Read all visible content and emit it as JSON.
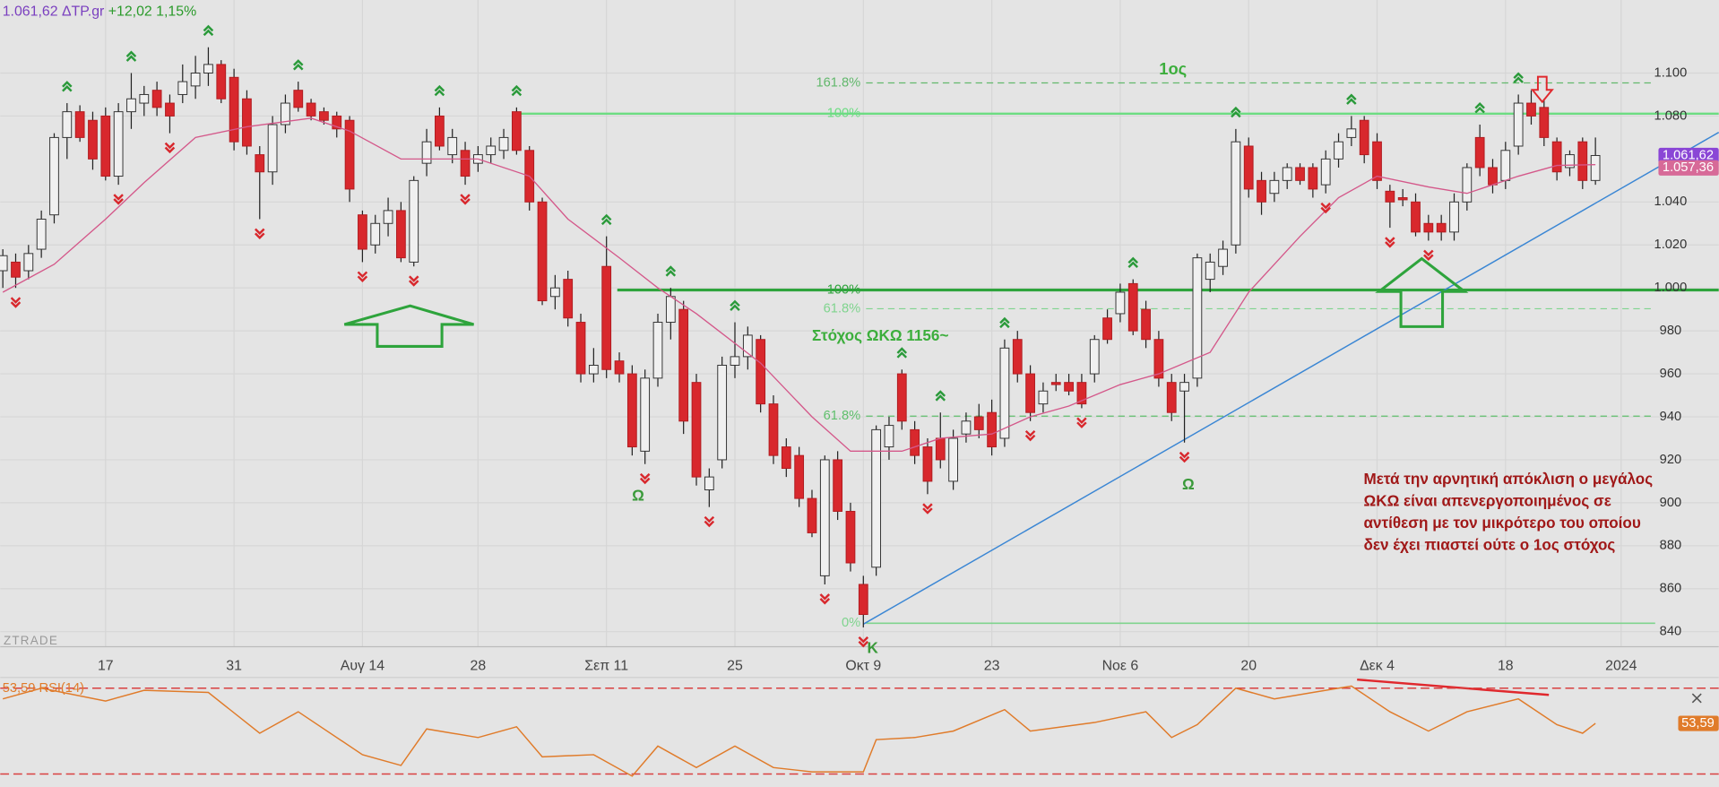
{
  "header": {
    "price": "1.061,62",
    "symbol": "ΔTP.gr",
    "change": "+12,02",
    "change_pct": "1,15%"
  },
  "watermark": "ZTRADE",
  "chart_data": {
    "type": "candlestick",
    "xlim": [
      -0.2,
      133.6
    ],
    "xticks": [
      {
        "value": 8,
        "label": "17"
      },
      {
        "value": 18,
        "label": "31"
      },
      {
        "value": 28,
        "label": "Αυγ 14"
      },
      {
        "value": 37,
        "label": "28"
      },
      {
        "value": 47,
        "label": "Σεπ 11"
      },
      {
        "value": 57,
        "label": "25"
      },
      {
        "value": 67,
        "label": "Οκτ 9"
      },
      {
        "value": 77,
        "label": "23"
      },
      {
        "value": 87,
        "label": "Νοε 6"
      },
      {
        "value": 97,
        "label": "20"
      },
      {
        "value": 107,
        "label": "Δεκ 4"
      },
      {
        "value": 117,
        "label": "18"
      },
      {
        "value": 126,
        "label": "2024"
      }
    ],
    "ylim": [
      833,
      1134
    ],
    "yticks": [
      {
        "value": 1100,
        "label": "1.100"
      },
      {
        "value": 1080,
        "label": "1.080"
      },
      {
        "value": 1040,
        "label": "1.040"
      },
      {
        "value": 1020,
        "label": "1.020"
      },
      {
        "value": 1000,
        "label": "1.000"
      },
      980,
      960,
      940,
      920,
      900,
      880,
      860,
      840
    ],
    "grid": true,
    "up_color": "#f0f0f0",
    "down_color": "#d8282d",
    "open": [
      1008,
      1012,
      1008,
      1018,
      1034,
      1070,
      1082,
      1078,
      1080,
      1052,
      1082,
      1086,
      1092,
      1086,
      1090,
      1094,
      1100,
      1104,
      1098,
      1088,
      1062,
      1054,
      1076,
      1092,
      1086,
      1082,
      1080,
      1078,
      1034,
      1020,
      1030,
      1036,
      1012,
      1058,
      1080,
      1062,
      1064,
      1058,
      1062,
      1064,
      1082,
      1064,
      1040,
      996,
      1004,
      984,
      960,
      1010,
      966,
      960,
      924,
      958,
      984,
      990,
      956,
      906,
      920,
      964,
      968,
      976,
      946,
      926,
      922,
      902,
      866,
      920,
      896,
      862,
      870,
      926,
      960,
      934,
      926,
      930,
      910,
      932,
      940,
      942,
      930,
      976,
      960,
      946,
      956,
      956,
      956,
      960,
      986,
      988,
      1002,
      990,
      976,
      956,
      952,
      958,
      1004,
      1010,
      1020,
      1066,
      1050,
      1044,
      1050,
      1056,
      1056,
      1048,
      1060,
      1070,
      1078,
      1068,
      1045,
      1042,
      1040,
      1030,
      1030,
      1026,
      1040,
      1070,
      1056,
      1050,
      1066,
      1086,
      1084,
      1068,
      1056,
      1068,
      1050
    ],
    "high": [
      1018,
      1016,
      1020,
      1036,
      1072,
      1086,
      1085,
      1082,
      1084,
      1086,
      1100,
      1094,
      1096,
      1090,
      1104,
      1108,
      1112,
      1106,
      1102,
      1092,
      1066,
      1080,
      1090,
      1096,
      1088,
      1084,
      1082,
      1080,
      1036,
      1034,
      1042,
      1040,
      1052,
      1074,
      1084,
      1074,
      1068,
      1066,
      1070,
      1074,
      1084,
      1066,
      1042,
      1006,
      1008,
      988,
      972,
      1024,
      970,
      964,
      962,
      988,
      1000,
      994,
      960,
      916,
      968,
      984,
      982,
      978,
      950,
      930,
      926,
      906,
      922,
      924,
      900,
      866,
      936,
      940,
      962,
      938,
      930,
      942,
      934,
      942,
      946,
      948,
      976,
      980,
      964,
      956,
      960,
      960,
      960,
      978,
      990,
      1002,
      1004,
      994,
      980,
      960,
      960,
      1016,
      1016,
      1022,
      1074,
      1070,
      1054,
      1054,
      1058,
      1058,
      1058,
      1064,
      1072,
      1080,
      1080,
      1072,
      1048,
      1046,
      1044,
      1034,
      1034,
      1044,
      1058,
      1076,
      1060,
      1068,
      1090,
      1092,
      1088,
      1070,
      1064,
      1070,
      1070
    ],
    "low": [
      1000,
      1000,
      1004,
      1014,
      1030,
      1060,
      1068,
      1055,
      1050,
      1048,
      1074,
      1080,
      1080,
      1072,
      1086,
      1088,
      1094,
      1086,
      1064,
      1062,
      1032,
      1048,
      1072,
      1082,
      1078,
      1076,
      1070,
      1040,
      1012,
      1016,
      1024,
      1012,
      1010,
      1052,
      1064,
      1058,
      1048,
      1054,
      1058,
      1060,
      1062,
      1036,
      992,
      990,
      982,
      956,
      956,
      958,
      956,
      922,
      918,
      954,
      976,
      932,
      908,
      898,
      916,
      958,
      962,
      942,
      918,
      912,
      898,
      884,
      862,
      892,
      868,
      842,
      866,
      920,
      934,
      918,
      904,
      916,
      906,
      928,
      930,
      922,
      926,
      956,
      938,
      942,
      952,
      950,
      944,
      956,
      974,
      984,
      978,
      972,
      954,
      938,
      928,
      954,
      998,
      1006,
      1016,
      1042,
      1034,
      1040,
      1046,
      1048,
      1042,
      1044,
      1056,
      1066,
      1058,
      1046,
      1028,
      1038,
      1024,
      1022,
      1022,
      1022,
      1036,
      1052,
      1044,
      1046,
      1062,
      1076,
      1066,
      1050,
      1052,
      1046,
      1048
    ],
    "close": [
      1015,
      1005,
      1016,
      1032,
      1070,
      1082,
      1070,
      1060,
      1052,
      1082,
      1088,
      1090,
      1084,
      1080,
      1096,
      1100,
      1104,
      1088,
      1068,
      1066,
      1054,
      1076,
      1086,
      1084,
      1080,
      1078,
      1074,
      1046,
      1018,
      1030,
      1036,
      1014,
      1050,
      1068,
      1066,
      1070,
      1052,
      1062,
      1066,
      1070,
      1064,
      1040,
      994,
      1000,
      986,
      960,
      964,
      962,
      960,
      926,
      958,
      984,
      996,
      938,
      912,
      912,
      964,
      968,
      978,
      946,
      922,
      916,
      902,
      886,
      920,
      896,
      872,
      848,
      934,
      936,
      938,
      922,
      910,
      920,
      930,
      938,
      934,
      926,
      972,
      960,
      942,
      952,
      955,
      952,
      946,
      976,
      976,
      998,
      980,
      976,
      958,
      942,
      956,
      1014,
      1012,
      1018,
      1068,
      1046,
      1040,
      1050,
      1056,
      1050,
      1046,
      1060,
      1068,
      1074,
      1062,
      1050,
      1040,
      1041,
      1026,
      1026,
      1026,
      1040,
      1056,
      1056,
      1048,
      1064,
      1086,
      1080,
      1070,
      1054,
      1062,
      1050,
      1061.62
    ],
    "ma": {
      "color": "#d4588a",
      "x": [
        0,
        4,
        8,
        11,
        15,
        19,
        24,
        27,
        31,
        34,
        37,
        41,
        44,
        48,
        51,
        54,
        59,
        63,
        66,
        70,
        73,
        77,
        80,
        83,
        87,
        90,
        94,
        97,
        101,
        104,
        107,
        111,
        114,
        118,
        121,
        124
      ],
      "values": [
        998,
        1011,
        1032,
        1049,
        1070,
        1075,
        1079,
        1073,
        1060,
        1060,
        1060,
        1052,
        1032,
        1014,
        1000,
        988,
        965,
        940,
        924,
        924,
        930,
        932,
        940,
        945,
        955,
        960,
        970,
        998,
        1024,
        1042,
        1052,
        1047,
        1044,
        1052,
        1057,
        1057.36
      ]
    },
    "signals_up": [
      5,
      10,
      16,
      23,
      34,
      40,
      47,
      52,
      57,
      70,
      73,
      78,
      88,
      96,
      105,
      115,
      118
    ],
    "signals_down": [
      1,
      9,
      13,
      20,
      28,
      32,
      36,
      50,
      55,
      64,
      67,
      72,
      80,
      84,
      92,
      103,
      108,
      111
    ],
    "signal_up_color": "#2a9a3a",
    "signal_down_color": "#d8282d",
    "price_labels": [
      {
        "value": 1061.62,
        "label": "1.061,62",
        "color": "#8a46d6"
      },
      {
        "value": 1057.36,
        "label": "1.057,36",
        "color": "#d76a98"
      }
    ],
    "levels": [
      {
        "value": 1095.4,
        "label": "161.8%",
        "color": "#62b86c",
        "dashed": true
      },
      {
        "value": 1081.1,
        "label": "100%",
        "color": "#6cdc82",
        "dashed": false
      },
      {
        "value": 999,
        "label": "100%",
        "color": "#2ea43c",
        "dashed": false
      },
      {
        "value": 990.3,
        "label": "61.8%",
        "color": "#7fd48e",
        "dashed": true
      },
      {
        "value": 940.3,
        "label": "61.8%",
        "color": "#5fbf6c",
        "dashed": true
      },
      {
        "value": 843.9,
        "label": "0%",
        "color": "#7fd48e",
        "dashed": false
      }
    ],
    "trendline": {
      "color": "#3a86d4",
      "x": [
        67,
        133.6
      ],
      "values": [
        843.5,
        1072.4
      ]
    },
    "annotations": {
      "target1": "1ος",
      "target": "Στόχος ΩΚΩ 1156~",
      "omega1": "Ω",
      "omega2": "Ω",
      "kappa": "Κ"
    },
    "note": [
      "Μετά την αρνητική απόκλιση ο μεγάλος",
      "ΩΚΩ είναι απενεργοποιημένος σε",
      "αντίθεση με τον μικρότερο του οποίου",
      "δεν έχει πιαστεί ούτε ο 1ος στόχος"
    ]
  },
  "rsi": {
    "type": "line",
    "label": "53,59 RSI(14)",
    "value_label": "53,59",
    "color": "#e07b2a",
    "ylim": [
      27,
      74
    ],
    "levels": [
      70,
      30
    ],
    "level_color": "#d94040",
    "x": [
      0,
      3,
      8,
      11,
      16,
      20,
      23,
      28,
      31,
      33,
      37,
      40,
      42,
      46,
      49,
      51,
      54,
      57,
      60,
      63,
      67,
      68,
      71,
      74,
      78,
      80,
      85,
      89,
      91,
      93,
      96,
      99,
      102,
      105,
      108,
      111,
      114,
      118,
      121,
      123,
      124
    ],
    "values": [
      65,
      70,
      64,
      69,
      68,
      49,
      59,
      39,
      34,
      51,
      47,
      52,
      38,
      39,
      29,
      43,
      33,
      43,
      33,
      31,
      31,
      46,
      47,
      50,
      60,
      50,
      54,
      59,
      47,
      53,
      70,
      65,
      68,
      71,
      59,
      50,
      59,
      65,
      53,
      49,
      53.59
    ]
  }
}
